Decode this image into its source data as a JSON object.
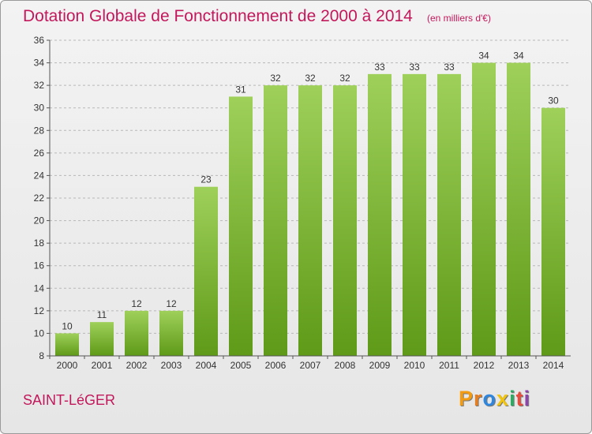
{
  "header": {
    "title": "Dotation Globale de Fonctionnement de 2000 à 2014",
    "unit": "(en milliers d'€)"
  },
  "footer": {
    "commune": "SAINT-LéGER",
    "logo": "Proxiti"
  },
  "logo_colors": [
    "#f39c12",
    "#e67e22",
    "#2e86de",
    "#f1c40f",
    "#27ae60",
    "#e74c3c",
    "#8e44ad"
  ],
  "colors": {
    "accent": "#c2185b",
    "bar_top": "#9ed05a",
    "bar_bottom": "#5f9a18",
    "axis": "#555555",
    "grid": "#b8b8b8"
  },
  "chart_data": {
    "type": "bar",
    "categories": [
      "2000",
      "2001",
      "2002",
      "2003",
      "2004",
      "2005",
      "2006",
      "2007",
      "2008",
      "2009",
      "2010",
      "2011",
      "2012",
      "2013",
      "2014"
    ],
    "values": [
      10,
      11,
      12,
      12,
      23,
      31,
      32,
      32,
      32,
      33,
      33,
      33,
      34,
      34,
      30
    ],
    "ylim": [
      8,
      36
    ],
    "yticks": [
      8,
      10,
      12,
      14,
      16,
      18,
      20,
      22,
      24,
      26,
      28,
      30,
      32,
      34,
      36
    ],
    "grid": "horizontal dashed",
    "data_labels": true
  }
}
